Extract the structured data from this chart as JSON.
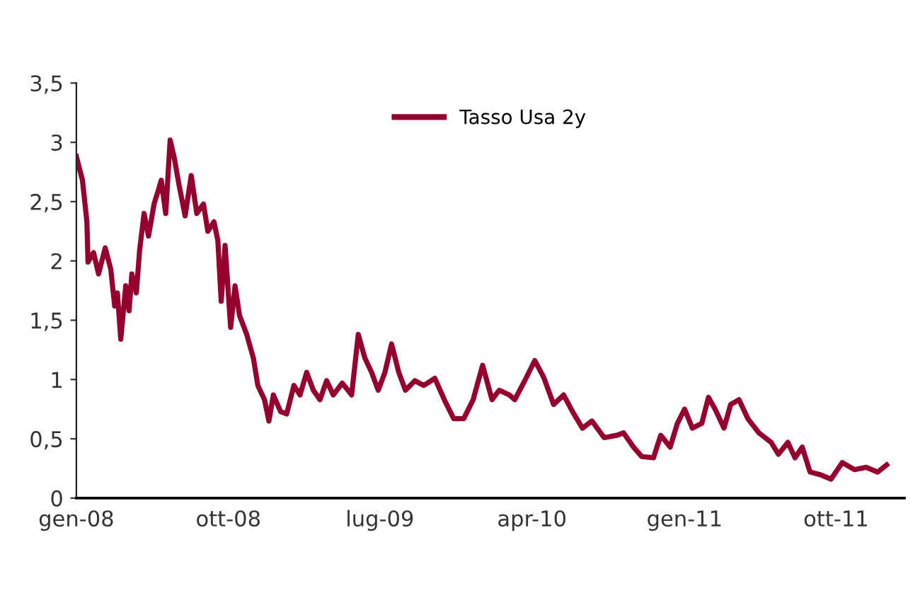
{
  "chart_data": {
    "type": "line",
    "legend": "top",
    "grid": false,
    "marker": "none",
    "line_style": "solid",
    "xlim": [
      "2008-01-01",
      "2012-02-01"
    ],
    "xticks": [
      {
        "value": "2008-01-01",
        "label": "gen-08"
      },
      {
        "value": "2008-10-01",
        "label": "ott-08"
      },
      {
        "value": "2009-07-01",
        "label": "lug-09"
      },
      {
        "value": "2010-04-01",
        "label": "apr-10"
      },
      {
        "value": "2011-01-01",
        "label": "gen-11"
      },
      {
        "value": "2011-10-01",
        "label": "ott-11"
      }
    ],
    "ylim": [
      0,
      3.5
    ],
    "yticks": [
      {
        "value": 0,
        "label": "0"
      },
      {
        "value": 0.5,
        "label": "0,5"
      },
      {
        "value": 1,
        "label": "1"
      },
      {
        "value": 1.5,
        "label": "1,5"
      },
      {
        "value": 2,
        "label": "2"
      },
      {
        "value": 2.5,
        "label": "2,5"
      },
      {
        "value": 3,
        "label": "3"
      },
      {
        "value": 3.5,
        "label": "3,5"
      }
    ],
    "series": [
      {
        "name": "Tasso Usa 2y",
        "color": "#95002e",
        "x": [
          "2008-01-01",
          "2008-01-12",
          "2008-01-20",
          "2008-01-22",
          "2008-02-01",
          "2008-02-10",
          "2008-02-22",
          "2008-03-03",
          "2008-03-10",
          "2008-03-15",
          "2008-03-21",
          "2008-03-30",
          "2008-04-05",
          "2008-04-10",
          "2008-04-18",
          "2008-04-24",
          "2008-05-02",
          "2008-05-10",
          "2008-05-20",
          "2008-05-28",
          "2008-06-02",
          "2008-06-10",
          "2008-06-18",
          "2008-06-25",
          "2008-07-04",
          "2008-07-15",
          "2008-07-26",
          "2008-08-05",
          "2008-08-17",
          "2008-08-25",
          "2008-09-05",
          "2008-09-12",
          "2008-09-18",
          "2008-09-25",
          "2008-10-05",
          "2008-10-13",
          "2008-10-21",
          "2008-11-03",
          "2008-11-15",
          "2008-11-23",
          "2008-12-05",
          "2008-12-13",
          "2008-12-21",
          "2009-01-03",
          "2009-01-14",
          "2009-01-27",
          "2009-02-07",
          "2009-02-19",
          "2009-03-03",
          "2009-03-15",
          "2009-03-27",
          "2009-04-08",
          "2009-04-24",
          "2009-05-11",
          "2009-05-23",
          "2009-06-04",
          "2009-06-16",
          "2009-06-28",
          "2009-07-10",
          "2009-07-22",
          "2009-08-04",
          "2009-08-16",
          "2009-09-02",
          "2009-09-18",
          "2009-10-08",
          "2009-10-25",
          "2009-11-11",
          "2009-11-29",
          "2009-12-16",
          "2010-01-02",
          "2010-01-19",
          "2010-02-01",
          "2010-02-19",
          "2010-03-01",
          "2010-03-19",
          "2010-04-06",
          "2010-04-22",
          "2010-05-10",
          "2010-05-28",
          "2010-06-13",
          "2010-07-01",
          "2010-07-18",
          "2010-08-09",
          "2010-09-01",
          "2010-09-13",
          "2010-10-01",
          "2010-10-16",
          "2010-11-06",
          "2010-11-19",
          "2010-12-06",
          "2010-12-19",
          "2011-01-01",
          "2011-01-15",
          "2011-02-01",
          "2011-02-13",
          "2011-02-25",
          "2011-03-13",
          "2011-03-25",
          "2011-04-09",
          "2011-04-25",
          "2011-05-15",
          "2011-06-06",
          "2011-06-19",
          "2011-07-06",
          "2011-07-19",
          "2011-08-01",
          "2011-08-15",
          "2011-09-01",
          "2011-09-22",
          "2011-10-12",
          "2011-11-03",
          "2011-11-24",
          "2011-12-15",
          "2011-12-31"
        ],
        "values": [
          2.88,
          2.68,
          2.33,
          1.99,
          2.07,
          1.89,
          2.11,
          1.93,
          1.62,
          1.73,
          1.34,
          1.79,
          1.58,
          1.89,
          1.73,
          2.09,
          2.4,
          2.21,
          2.48,
          2.6,
          2.68,
          2.4,
          3.02,
          2.88,
          2.64,
          2.38,
          2.72,
          2.4,
          2.48,
          2.25,
          2.33,
          2.17,
          1.66,
          2.13,
          1.44,
          1.79,
          1.54,
          1.38,
          1.18,
          0.95,
          0.83,
          0.65,
          0.87,
          0.73,
          0.71,
          0.95,
          0.87,
          1.06,
          0.91,
          0.83,
          0.99,
          0.87,
          0.97,
          0.87,
          1.38,
          1.18,
          1.06,
          0.91,
          1.06,
          1.3,
          1.06,
          0.91,
          0.99,
          0.95,
          1.01,
          0.83,
          0.67,
          0.67,
          0.83,
          1.12,
          0.83,
          0.91,
          0.87,
          0.83,
          0.99,
          1.16,
          1.02,
          0.79,
          0.87,
          0.73,
          0.59,
          0.65,
          0.51,
          0.53,
          0.55,
          0.43,
          0.35,
          0.34,
          0.53,
          0.43,
          0.63,
          0.75,
          0.59,
          0.63,
          0.85,
          0.75,
          0.59,
          0.79,
          0.83,
          0.67,
          0.55,
          0.47,
          0.37,
          0.47,
          0.34,
          0.43,
          0.22,
          0.2,
          0.16,
          0.3,
          0.24,
          0.26,
          0.22,
          0.28
        ]
      }
    ]
  }
}
